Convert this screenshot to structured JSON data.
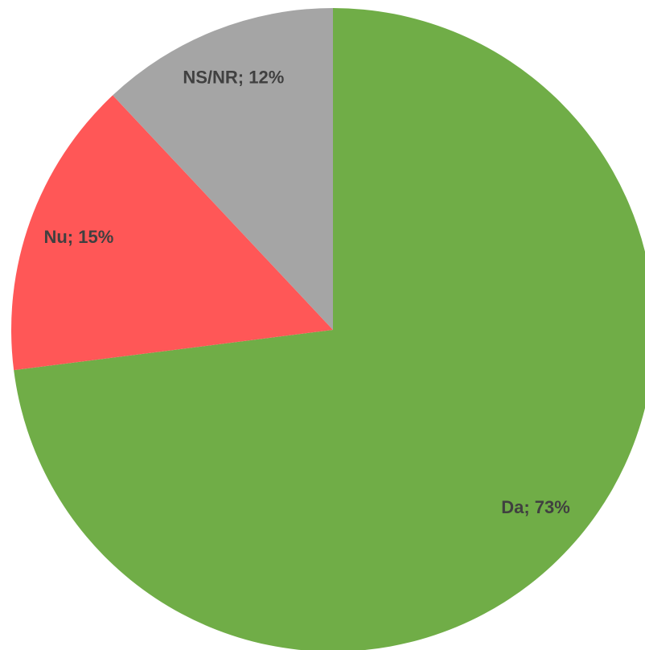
{
  "chart_data": {
    "type": "pie",
    "categories": [
      "Da",
      "Nu",
      "NS/NR"
    ],
    "values": [
      73,
      15,
      12
    ],
    "value_labels": [
      "Da; 73%",
      "Nu; 15%",
      "NS/NR; 12%"
    ],
    "colors": [
      "#70ad47",
      "#ff5757",
      "#a5a5a5"
    ]
  }
}
